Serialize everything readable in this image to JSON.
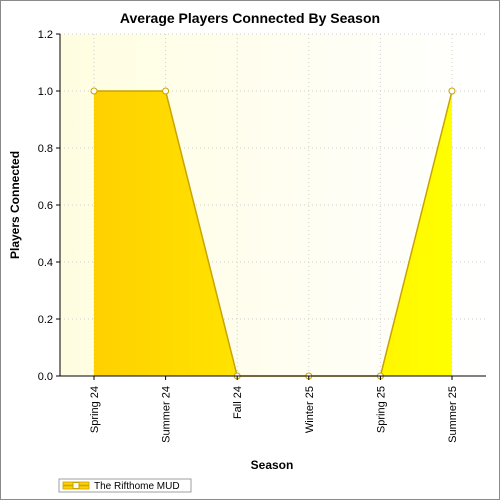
{
  "chart_data": {
    "type": "area",
    "title": "Average Players Connected By Season",
    "xlabel": "Season",
    "ylabel": "Players Connected",
    "categories": [
      "Spring 24",
      "Summer 24",
      "Fall 24",
      "Winter 25",
      "Spring 25",
      "Summer 25"
    ],
    "series": [
      {
        "name": "The Rifthome MUD",
        "values": [
          1.0,
          1.0,
          0.0,
          0.0,
          0.0,
          1.0
        ],
        "color": "#ffe000"
      }
    ],
    "ylim": [
      0,
      1.2
    ],
    "yticks": [
      "0.0",
      "0.2",
      "0.4",
      "0.6",
      "0.8",
      "1.0",
      "1.2"
    ],
    "grid": true,
    "legend_position": "bottom-left"
  },
  "colors": {
    "plot_background_start": "#fffde0",
    "area_fill_start": "#ffd000",
    "area_fill_end": "#ffff00",
    "line": "#c9a300",
    "marker_fill": "#ffffff"
  }
}
